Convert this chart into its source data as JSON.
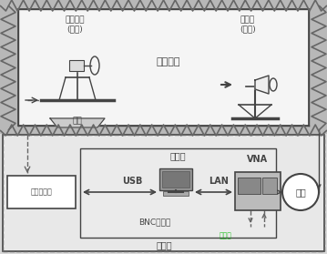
{
  "fig_width": 3.59,
  "fig_height": 2.79,
  "dpi": 100,
  "bg_outer": "#c8c8c8",
  "bg_top_inner": "#f0f0f0",
  "bg_bottom": "#e0e0e0",
  "bg_comp_box": "#eaeaea",
  "text_color": "#222222",
  "t1": "待测天线",
  "t2": "(接收)",
  "t3": "源天线",
  "t4": "(发射)",
  "t5": "微波暗室",
  "t6": "转台",
  "t7": "转台控制筱",
  "t8": "计算机",
  "t9": "USB",
  "t10": "LAN",
  "t11": "VNA",
  "t12": "功放",
  "t13": "BNC同轴线",
  "t14": "控制室",
  "zz_color": "#666666",
  "line_color": "#444444",
  "dash_color": "#666666",
  "white": "#ffffff",
  "gray_light": "#dddddd",
  "gray_mid": "#aaaaaa"
}
